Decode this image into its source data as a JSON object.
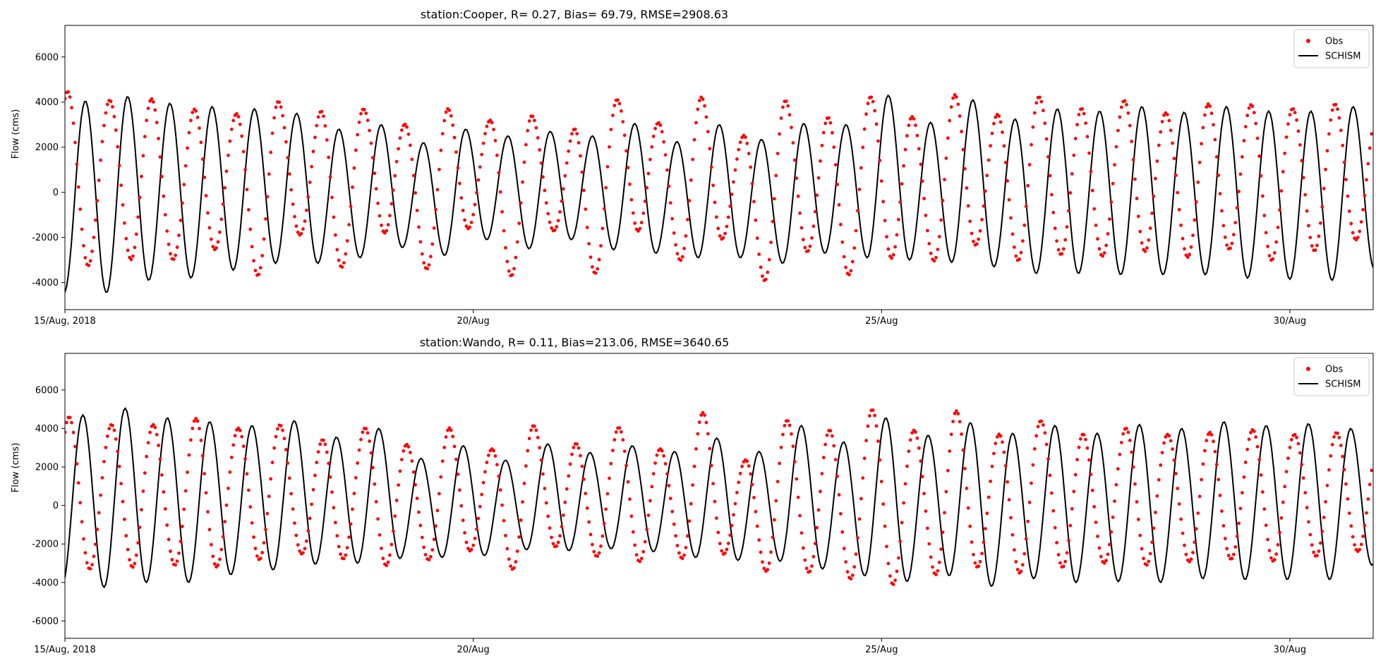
{
  "chart_data": [
    {
      "type": "scatter+line",
      "title": "station:Cooper, R=  0.27, Bias= 69.79, RMSE=2908.63",
      "ylabel": "Flow (cms)",
      "xlabel": "",
      "xlim": [
        0,
        16.02
      ],
      "ylim": [
        -5200,
        7400
      ],
      "yticks": [
        -4000,
        -2000,
        0,
        2000,
        4000,
        6000
      ],
      "xticks": [
        {
          "value": 0,
          "label": "15/Aug, 2018"
        },
        {
          "value": 5,
          "label": "20/Aug"
        },
        {
          "value": 10,
          "label": "25/Aug"
        },
        {
          "value": 15,
          "label": "30/Aug"
        }
      ],
      "legend": {
        "position": "upper-right",
        "entries": [
          "Obs",
          "SCHISM"
        ]
      },
      "series": [
        {
          "name": "Obs",
          "kind": "scatter",
          "color": "#ff0000",
          "period_days": 0.5175,
          "start_day": 0.03,
          "cycles": [
            {
              "high": 4400,
              "low": -3200
            },
            {
              "high": 4200,
              "low": -2900
            },
            {
              "high": 4100,
              "low": -3100
            },
            {
              "high": 3600,
              "low": -2500
            },
            {
              "high": 3600,
              "low": -3600
            },
            {
              "high": 4000,
              "low": -2000
            },
            {
              "high": 3500,
              "low": -3300
            },
            {
              "high": 3800,
              "low": -1700
            },
            {
              "high": 3000,
              "low": -3500
            },
            {
              "high": 3600,
              "low": -1600
            },
            {
              "high": 3300,
              "low": -3600
            },
            {
              "high": 3400,
              "low": -1800
            },
            {
              "high": 2700,
              "low": -3600
            },
            {
              "high": 4200,
              "low": -1600
            },
            {
              "high": 3100,
              "low": -3100
            },
            {
              "high": 4100,
              "low": -2100
            },
            {
              "high": 2600,
              "low": -3800
            },
            {
              "high": 4100,
              "low": -2700
            },
            {
              "high": 3200,
              "low": -3700
            },
            {
              "high": 4300,
              "low": -2800
            },
            {
              "high": 3400,
              "low": -3100
            },
            {
              "high": 4200,
              "low": -2400
            },
            {
              "high": 3500,
              "low": -2900
            },
            {
              "high": 4300,
              "low": -2800
            },
            {
              "high": 3600,
              "low": -2900
            },
            {
              "high": 4100,
              "low": -2500
            },
            {
              "high": 3600,
              "low": -2900
            },
            {
              "high": 3800,
              "low": -2600
            },
            {
              "high": 3900,
              "low": -2900
            },
            {
              "high": 3800,
              "low": -2600
            },
            {
              "high": 3800,
              "low": -2200
            }
          ]
        },
        {
          "name": "SCHISM",
          "kind": "line",
          "color": "#000000",
          "period_days": 0.5175,
          "start_day": 0.25,
          "cycles": [
            {
              "high": 4050,
              "low": -4450
            },
            {
              "high": 4250,
              "low": -3900
            },
            {
              "high": 3950,
              "low": -3800
            },
            {
              "high": 3800,
              "low": -3450
            },
            {
              "high": 3700,
              "low": -3150
            },
            {
              "high": 3500,
              "low": -3150
            },
            {
              "high": 2800,
              "low": -2900
            },
            {
              "high": 3000,
              "low": -2450
            },
            {
              "high": 2200,
              "low": -2800
            },
            {
              "high": 2800,
              "low": -2100
            },
            {
              "high": 2500,
              "low": -2500
            },
            {
              "high": 2700,
              "low": -2100
            },
            {
              "high": 2500,
              "low": -2550
            },
            {
              "high": 3050,
              "low": -2700
            },
            {
              "high": 2250,
              "low": -2900
            },
            {
              "high": 3000,
              "low": -2900
            },
            {
              "high": 2350,
              "low": -3150
            },
            {
              "high": 3050,
              "low": -2700
            },
            {
              "high": 3000,
              "low": -2900
            },
            {
              "high": 4300,
              "low": -3000
            },
            {
              "high": 3100,
              "low": -3100
            },
            {
              "high": 4100,
              "low": -3300
            },
            {
              "high": 3250,
              "low": -3600
            },
            {
              "high": 3700,
              "low": -3600
            },
            {
              "high": 3600,
              "low": -3650
            },
            {
              "high": 3800,
              "low": -3650
            },
            {
              "high": 3550,
              "low": -3650
            },
            {
              "high": 3800,
              "low": -3800
            },
            {
              "high": 3600,
              "low": -3850
            },
            {
              "high": 3600,
              "low": -3900
            },
            {
              "high": 3800,
              "low": -3400
            }
          ]
        }
      ]
    },
    {
      "type": "scatter+line",
      "title": "station:Wando, R=  0.11, Bias=213.06, RMSE=3640.65",
      "ylabel": "Flow (cms)",
      "xlabel": "",
      "xlim": [
        0,
        16.02
      ],
      "ylim": [
        -6900,
        7900
      ],
      "yticks": [
        -6000,
        -4000,
        -2000,
        0,
        2000,
        4000,
        6000
      ],
      "xticks": [
        {
          "value": 0,
          "label": "15/Aug, 2018"
        },
        {
          "value": 5,
          "label": "20/Aug"
        },
        {
          "value": 10,
          "label": "25/Aug"
        },
        {
          "value": 15,
          "label": "30/Aug"
        }
      ],
      "legend": {
        "position": "upper-right",
        "entries": [
          "Obs",
          "SCHISM"
        ]
      },
      "series": [
        {
          "name": "Obs",
          "kind": "scatter",
          "color": "#ff0000",
          "period_days": 0.5175,
          "start_day": 0.05,
          "cycles": [
            {
              "high": 4500,
              "low": -3300
            },
            {
              "high": 4300,
              "low": -3100
            },
            {
              "high": 4200,
              "low": -3200
            },
            {
              "high": 4400,
              "low": -3200
            },
            {
              "high": 4100,
              "low": -2700
            },
            {
              "high": 4200,
              "low": -2600
            },
            {
              "high": 3300,
              "low": -2800
            },
            {
              "high": 4100,
              "low": -3000
            },
            {
              "high": 3200,
              "low": -2900
            },
            {
              "high": 3900,
              "low": -2400
            },
            {
              "high": 3000,
              "low": -3200
            },
            {
              "high": 4200,
              "low": -2200
            },
            {
              "high": 3100,
              "low": -2700
            },
            {
              "high": 4100,
              "low": -2800
            },
            {
              "high": 3000,
              "low": -2800
            },
            {
              "high": 4700,
              "low": -2600
            },
            {
              "high": 2400,
              "low": -3300
            },
            {
              "high": 4500,
              "low": -3500
            },
            {
              "high": 3800,
              "low": -3900
            },
            {
              "high": 5000,
              "low": -4000
            },
            {
              "high": 4000,
              "low": -3600
            },
            {
              "high": 4800,
              "low": -3300
            },
            {
              "high": 3700,
              "low": -3400
            },
            {
              "high": 4500,
              "low": -3200
            },
            {
              "high": 3600,
              "low": -3100
            },
            {
              "high": 4000,
              "low": -3000
            },
            {
              "high": 3800,
              "low": -2900
            },
            {
              "high": 3700,
              "low": -2900
            },
            {
              "high": 3900,
              "low": -2800
            },
            {
              "high": 3800,
              "low": -2600
            },
            {
              "high": 3700,
              "low": -2500
            }
          ]
        },
        {
          "name": "SCHISM",
          "kind": "line",
          "color": "#000000",
          "period_days": 0.5175,
          "start_day": 0.22,
          "cycles": [
            {
              "high": 4700,
              "low": -4250
            },
            {
              "high": 5050,
              "low": -4000
            },
            {
              "high": 4550,
              "low": -4000
            },
            {
              "high": 4350,
              "low": -3600
            },
            {
              "high": 4150,
              "low": -3350
            },
            {
              "high": 4400,
              "low": -3050
            },
            {
              "high": 3550,
              "low": -3000
            },
            {
              "high": 4000,
              "low": -2750
            },
            {
              "high": 2450,
              "low": -2700
            },
            {
              "high": 3100,
              "low": -2600
            },
            {
              "high": 2350,
              "low": -2300
            },
            {
              "high": 3200,
              "low": -2350
            },
            {
              "high": 2750,
              "low": -2250
            },
            {
              "high": 3100,
              "low": -2400
            },
            {
              "high": 2800,
              "low": -2700
            },
            {
              "high": 3500,
              "low": -2850
            },
            {
              "high": 2800,
              "low": -2900
            },
            {
              "high": 4150,
              "low": -3300
            },
            {
              "high": 3300,
              "low": -3650
            },
            {
              "high": 4550,
              "low": -3950
            },
            {
              "high": 3650,
              "low": -3650
            },
            {
              "high": 4300,
              "low": -4200
            },
            {
              "high": 3750,
              "low": -3800
            },
            {
              "high": 4150,
              "low": -4000
            },
            {
              "high": 3750,
              "low": -3950
            },
            {
              "high": 4200,
              "low": -4000
            },
            {
              "high": 4000,
              "low": -3800
            },
            {
              "high": 4350,
              "low": -3850
            },
            {
              "high": 4150,
              "low": -3850
            },
            {
              "high": 4250,
              "low": -3850
            },
            {
              "high": 4000,
              "low": -3100
            }
          ]
        }
      ]
    }
  ]
}
